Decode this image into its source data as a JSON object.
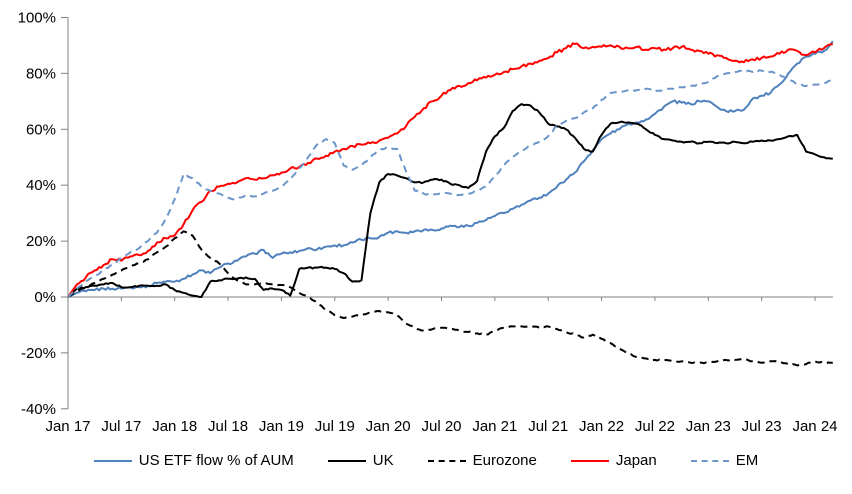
{
  "chart_data": {
    "type": "line",
    "title": "",
    "xlabel": "",
    "ylabel": "",
    "ylim": [
      -40,
      100
    ],
    "grid": false,
    "legend_position": "bottom",
    "y_tick_labels": [
      "100%",
      "80%",
      "60%",
      "40%",
      "20%",
      "0%",
      "-20%",
      "-40%"
    ],
    "y_tick_values": [
      100,
      80,
      60,
      40,
      20,
      0,
      -20,
      -40
    ],
    "x_tick_labels": [
      "Jan 17",
      "Jul 17",
      "Jan 18",
      "Jul 18",
      "Jan 19",
      "Jul 19",
      "Jan 20",
      "Jul 20",
      "Jan 21",
      "Jul 21",
      "Jan 22",
      "Jul 22",
      "Jan 23",
      "Jul 23",
      "Jan 24"
    ],
    "x_start_month": "Jan 17",
    "x_end_month": "Mar 24",
    "units": "percent of AUM",
    "series": [
      {
        "name": "US ETF flow % of AUM",
        "color": "#4f81bd",
        "dash": "solid",
        "values": [
          0,
          1.5,
          2,
          2.5,
          3,
          3,
          3,
          3.5,
          3.5,
          4,
          5,
          5.5,
          5.5,
          6.5,
          8,
          9.5,
          8.5,
          10.5,
          12,
          13,
          14.5,
          15.5,
          16.8,
          14,
          15.5,
          16,
          16.5,
          17.5,
          17,
          18,
          18.5,
          18.5,
          19.5,
          20.5,
          21,
          21.5,
          23,
          23.5,
          23,
          23.5,
          24,
          24,
          24.5,
          25.5,
          25,
          25.5,
          26.5,
          27.5,
          29,
          30,
          31.5,
          33,
          34.5,
          35.5,
          37,
          39.5,
          42,
          44.5,
          48.5,
          52.5,
          56.5,
          58.5,
          60,
          62,
          62.5,
          63.5,
          65.5,
          68,
          70,
          69.5,
          69,
          70,
          70,
          68,
          66.5,
          66.5,
          67,
          71,
          72,
          73,
          76,
          80,
          83.5,
          86,
          87,
          88,
          91.5
        ]
      },
      {
        "name": "UK",
        "color": "#000000",
        "dash": "solid",
        "values": [
          0,
          3,
          3.5,
          4,
          4.5,
          5,
          3.5,
          3.5,
          4,
          4,
          4,
          4.5,
          2.5,
          1.5,
          0.5,
          0,
          5.5,
          6,
          6.5,
          6.5,
          7,
          6.5,
          2.5,
          3,
          2.5,
          0.5,
          10,
          10.5,
          10.5,
          10.5,
          10,
          8.5,
          5.5,
          6,
          30,
          41,
          44,
          43.5,
          42.5,
          41,
          41,
          42,
          42,
          40.5,
          40,
          39,
          41.5,
          52,
          57.5,
          60.5,
          66.5,
          69,
          68.5,
          66,
          62,
          61,
          60,
          57,
          53,
          52,
          58,
          62,
          62.5,
          62.5,
          62,
          60,
          58,
          56.5,
          56,
          55.5,
          55.5,
          55,
          55.5,
          55,
          55,
          55.5,
          55,
          55.5,
          56,
          56,
          56.5,
          57.5,
          58,
          52,
          51,
          50,
          49.5
        ]
      },
      {
        "name": "Eurozone",
        "color": "#000000",
        "dash": "dashed",
        "values": [
          0,
          2,
          3.5,
          5,
          6.5,
          8,
          9.5,
          11,
          12,
          13.5,
          16,
          18,
          21,
          23.5,
          22,
          17,
          14,
          12,
          8.5,
          6,
          4.5,
          4.5,
          5,
          4.5,
          4.3,
          3.5,
          1.5,
          0,
          -2,
          -4.5,
          -6.5,
          -7.5,
          -7,
          -6.5,
          -5.5,
          -5,
          -5.5,
          -6.5,
          -9.5,
          -11,
          -12,
          -11.5,
          -11,
          -11.5,
          -12,
          -12.5,
          -13,
          -13.5,
          -12,
          -11,
          -10.5,
          -10.5,
          -10.5,
          -11,
          -10.5,
          -11.5,
          -12.5,
          -13.5,
          -14.5,
          -13.5,
          -15,
          -16.5,
          -18.5,
          -20,
          -21.5,
          -22,
          -22.5,
          -22.5,
          -23,
          -23,
          -23.5,
          -23.5,
          -23.5,
          -23,
          -22.5,
          -22.5,
          -22,
          -23,
          -23.5,
          -23,
          -23,
          -24,
          -24.5,
          -24,
          -23,
          -23.5,
          -23.5
        ]
      },
      {
        "name": "Japan",
        "color": "#fe0000",
        "dash": "solid",
        "values": [
          0,
          4.5,
          7,
          9.5,
          11.5,
          13.5,
          13,
          14.5,
          15,
          16.5,
          19.5,
          21,
          22,
          26,
          31,
          34,
          38,
          39.5,
          40.5,
          41,
          42.5,
          42,
          42.5,
          43.5,
          44.5,
          46,
          46.5,
          48,
          49.5,
          50.5,
          52,
          53,
          54,
          54.5,
          55,
          56,
          57,
          58.5,
          61,
          64.5,
          67.5,
          70,
          72,
          74,
          75.5,
          76.5,
          77.5,
          78.5,
          79.5,
          80.5,
          81.5,
          82.5,
          83.5,
          84.5,
          85.5,
          87.5,
          89,
          90.5,
          89,
          89.5,
          89.5,
          90,
          89.5,
          89,
          89.5,
          88.5,
          89,
          88.5,
          89,
          89.5,
          88.5,
          88,
          87,
          86.5,
          85.5,
          84.5,
          84,
          85,
          85.5,
          86,
          87,
          88.5,
          88,
          86.5,
          87.5,
          89,
          90.5
        ]
      },
      {
        "name": "EM",
        "color": "#6b95c9",
        "dash": "dashed",
        "values": [
          0,
          3,
          5.5,
          7.5,
          9.5,
          11.5,
          14,
          16,
          17.5,
          20,
          23,
          28,
          35,
          44,
          42.5,
          39.5,
          38,
          37,
          35.5,
          35,
          36.5,
          36,
          37,
          38,
          39.5,
          42,
          46,
          50,
          54.5,
          56.5,
          55,
          47,
          45.5,
          47,
          50,
          52.5,
          53.5,
          53,
          45,
          38,
          37,
          36.5,
          37,
          37,
          36.5,
          37,
          38,
          39.5,
          43,
          47,
          50,
          52.5,
          54,
          55.5,
          57.5,
          61.5,
          63,
          64,
          66,
          67.5,
          70.5,
          73,
          73.5,
          74,
          74,
          74.5,
          73.5,
          74,
          74.5,
          75,
          75.5,
          76,
          77,
          79,
          80,
          80.5,
          81,
          80.5,
          81,
          80.5,
          79.5,
          78,
          76,
          75.5,
          76,
          76.5,
          78
        ]
      }
    ]
  }
}
